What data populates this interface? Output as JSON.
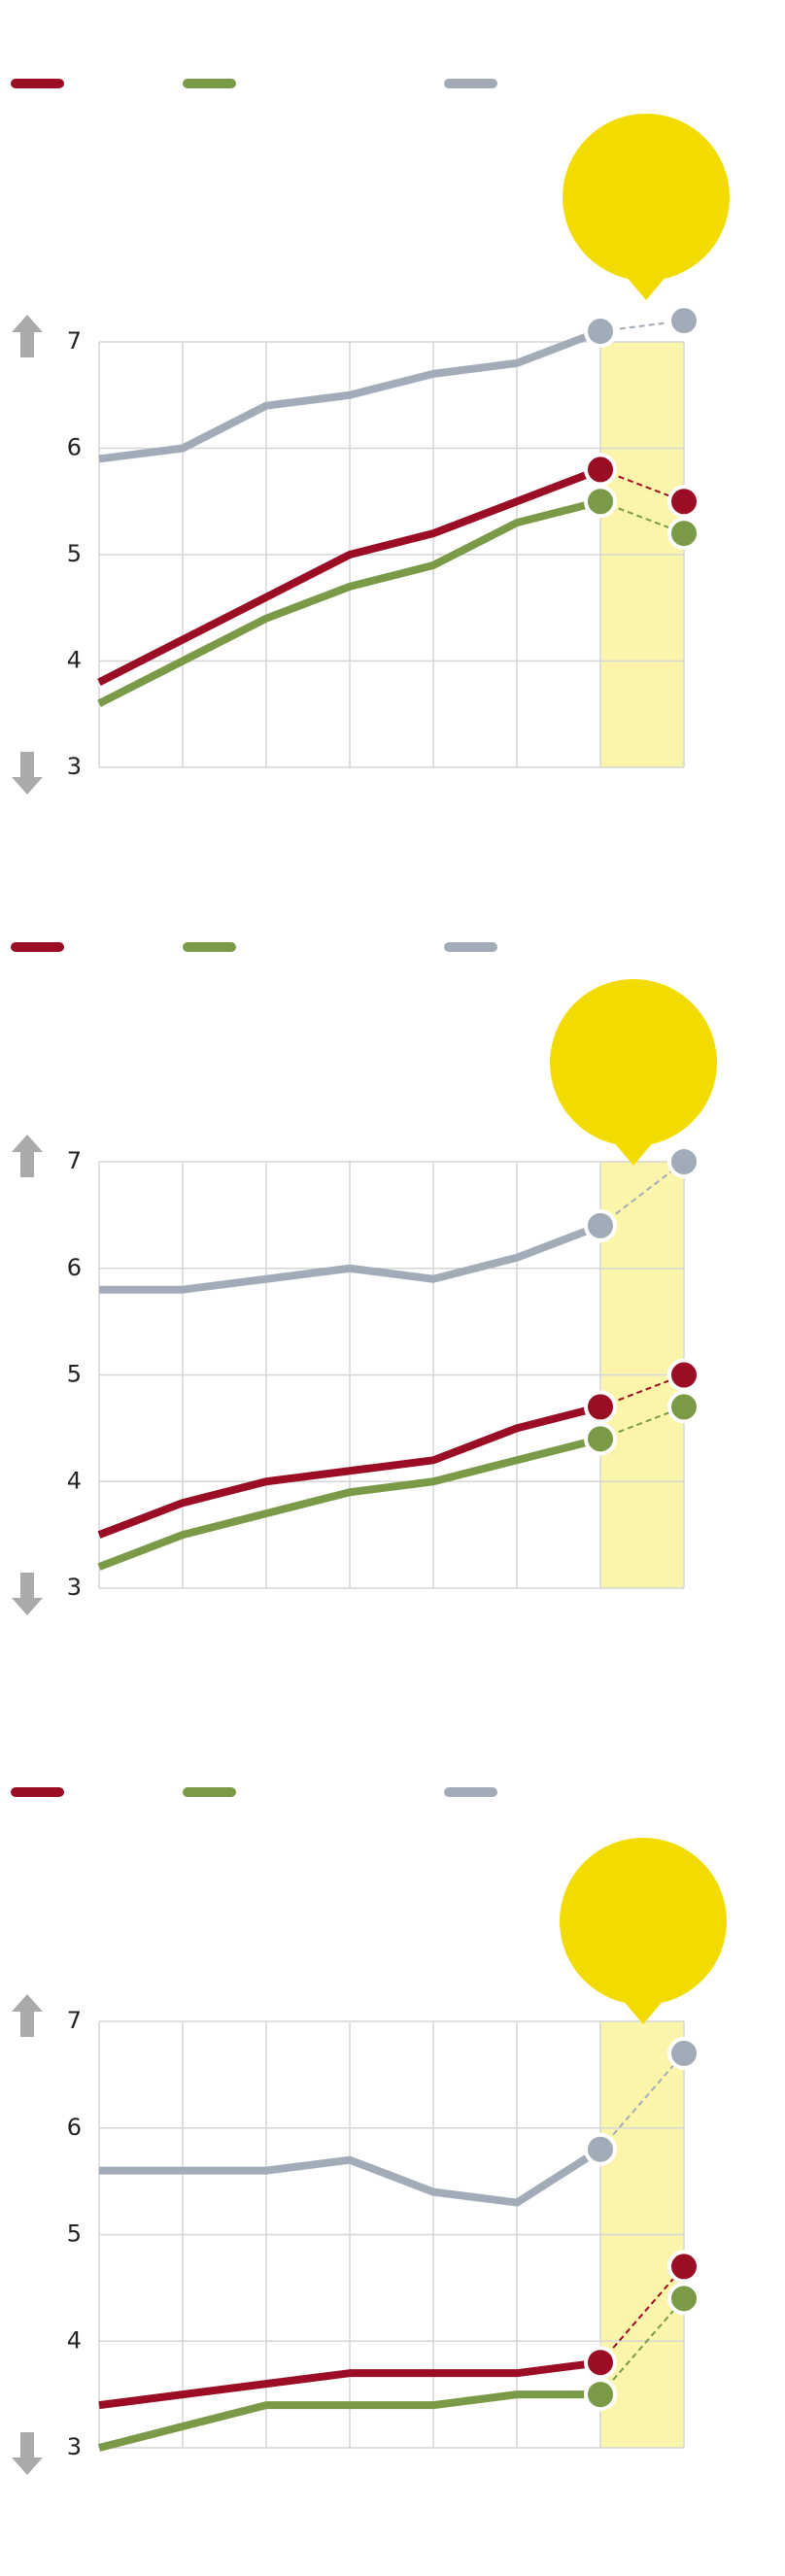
{
  "chart_data": [
    {
      "type": "line",
      "categories": [
        null,
        null,
        null,
        null,
        null,
        null,
        null,
        null
      ],
      "series": [
        {
          "color": "#9b0d24",
          "values": [
            3.8,
            4.2,
            4.6,
            5.0,
            5.2,
            5.5,
            5.8,
            5.5
          ]
        },
        {
          "color": "#7a9a48",
          "values": [
            3.6,
            4.0,
            4.4,
            4.7,
            4.9,
            5.3,
            5.5,
            5.2
          ]
        },
        {
          "color": "#a2abb8",
          "values": [
            5.9,
            6.0,
            6.4,
            6.5,
            6.7,
            6.8,
            7.1,
            7.2
          ]
        }
      ],
      "ylim": [
        3,
        7
      ],
      "yticks": [
        3,
        4,
        5,
        6,
        7
      ],
      "grid": true
    },
    {
      "type": "line",
      "categories": [
        null,
        null,
        null,
        null,
        null,
        null,
        null,
        null
      ],
      "series": [
        {
          "color": "#9b0d24",
          "values": [
            3.5,
            3.8,
            4.0,
            4.1,
            4.2,
            4.5,
            4.7,
            5.0
          ]
        },
        {
          "color": "#7a9a48",
          "values": [
            3.2,
            3.5,
            3.7,
            3.9,
            4.0,
            4.2,
            4.4,
            4.7
          ]
        },
        {
          "color": "#a2abb8",
          "values": [
            5.8,
            5.8,
            5.9,
            6.0,
            5.9,
            6.1,
            6.4,
            7.0
          ]
        }
      ],
      "ylim": [
        3,
        7
      ],
      "yticks": [
        3,
        4,
        5,
        6,
        7
      ],
      "grid": true
    },
    {
      "type": "line",
      "categories": [
        null,
        null,
        null,
        null,
        null,
        null,
        null,
        null
      ],
      "series": [
        {
          "color": "#9b0d24",
          "values": [
            3.4,
            3.5,
            3.6,
            3.7,
            3.7,
            3.7,
            3.8,
            4.7
          ]
        },
        {
          "color": "#7a9a48",
          "values": [
            3.0,
            3.2,
            3.4,
            3.4,
            3.4,
            3.5,
            3.5,
            4.4
          ]
        },
        {
          "color": "#a2abb8",
          "values": [
            5.6,
            5.6,
            5.6,
            5.7,
            5.4,
            5.3,
            5.8,
            6.7
          ]
        }
      ],
      "ylim": [
        3,
        7
      ],
      "yticks": [
        3,
        4,
        5,
        6,
        7
      ],
      "grid": true
    }
  ]
}
